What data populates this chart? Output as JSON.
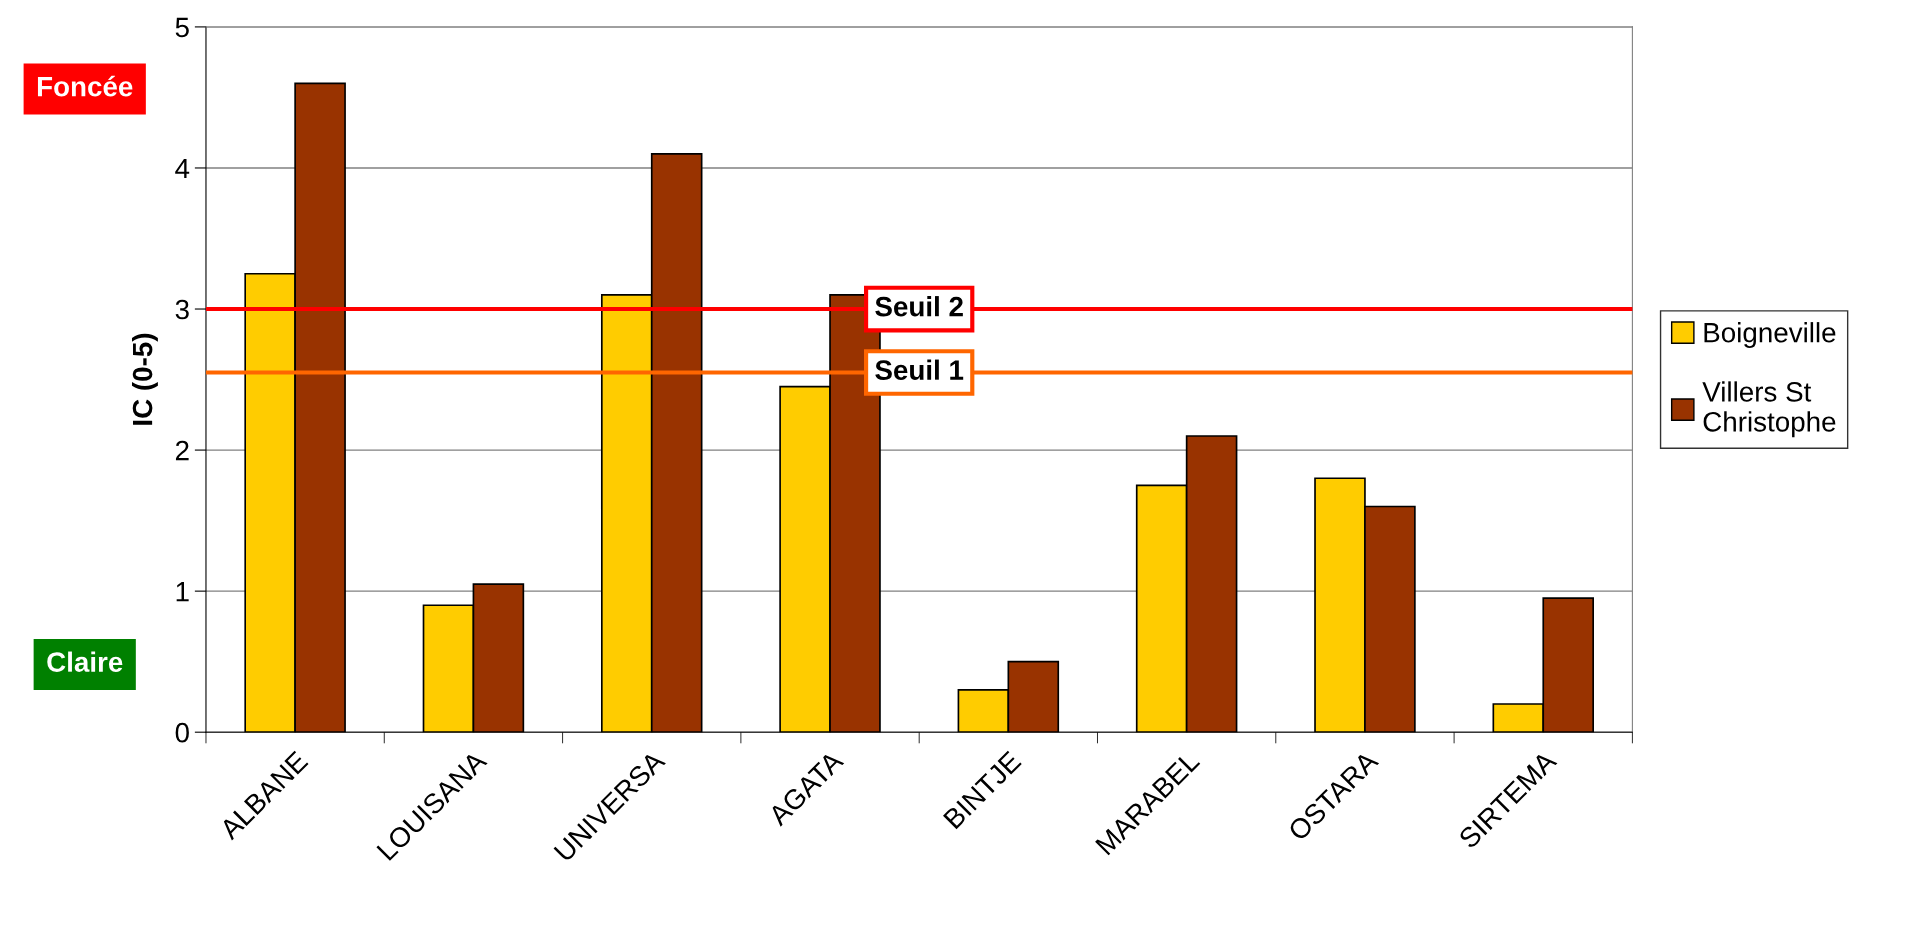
{
  "chart_data": {
    "type": "bar",
    "ylabel": "IC (0-5)",
    "categories": [
      "ALBANE",
      "LOUISANA",
      "UNIVERSA",
      "AGATA",
      "BINTJE",
      "MARABEL",
      "OSTARA",
      "SIRTEMA"
    ],
    "series": [
      {
        "name": "Boigneville",
        "color": "#ffcc00",
        "values": [
          3.25,
          0.9,
          3.1,
          2.45,
          0.3,
          1.75,
          1.8,
          0.2
        ]
      },
      {
        "name": "Villers St\nChristophe",
        "color": "#993300",
        "values": [
          4.6,
          1.05,
          4.1,
          3.1,
          0.5,
          2.1,
          1.6,
          0.95
        ]
      }
    ],
    "ylim": [
      0,
      5
    ],
    "yticks": [
      0,
      1,
      2,
      3,
      4,
      5
    ],
    "grid": "y",
    "legend": "right",
    "ref_lines": [
      {
        "axis": "y",
        "value": 3.0,
        "label": "Seuil 2",
        "color": "#ff0000"
      },
      {
        "axis": "y",
        "value": 2.55,
        "label": "Seuil 1",
        "color": "#ff6600"
      }
    ],
    "annotations": [
      "Foncée",
      "Claire"
    ]
  }
}
